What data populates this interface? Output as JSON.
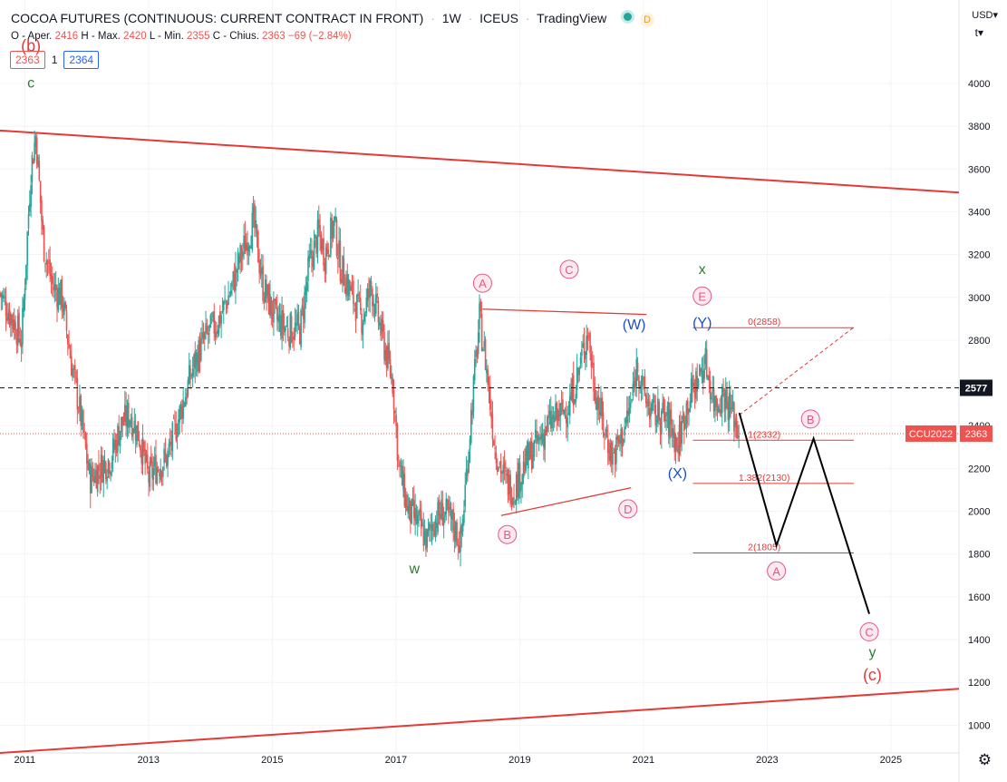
{
  "header": {
    "symbol": "COCOA FUTURES (CONTINUOUS: CURRENT CONTRACT IN FRONT)",
    "interval": "1W",
    "exchange": "ICEUS",
    "source": "TradingView",
    "badge": "D"
  },
  "ohlc": {
    "o_label": "O - Aper.",
    "o": "2416",
    "h_label": "H - Max.",
    "h": "2420",
    "l_label": "L - Min.",
    "l": "2355",
    "c_label": "C - Chius.",
    "c": "2363",
    "change": "−69 (−2.84%)"
  },
  "toolbar": {
    "bid": "2363",
    "mid": "1",
    "ask": "2364"
  },
  "axis": {
    "currency": "USD▾",
    "scale_mode": "t▾"
  },
  "colors": {
    "up": "#26a69a",
    "down": "#ef5350",
    "trend": "#e53935",
    "label_pink": "#e05a82",
    "label_green": "#2e7d32",
    "label_blue": "#1e4fc2"
  },
  "chart_data": {
    "type": "candlestick",
    "interval": "1W",
    "xlim": [
      2010.6,
      2026.1
    ],
    "ylim": [
      870,
      4390
    ],
    "x_ticks": [
      "2011",
      "2013",
      "2015",
      "2017",
      "2019",
      "2021",
      "2023",
      "2025"
    ],
    "y_ticks": [
      1000,
      1200,
      1400,
      1600,
      1800,
      2000,
      2200,
      2400,
      2600,
      2800,
      3000,
      3200,
      3400,
      3600,
      3800,
      4000
    ],
    "grid": true,
    "last_price": 2363,
    "last_price_label": "CCU2022",
    "dashed_level": 2577,
    "price_path": [
      [
        2010.6,
        3020
      ],
      [
        2010.8,
        2900
      ],
      [
        2010.95,
        2800
      ],
      [
        2011.1,
        3600
      ],
      [
        2011.18,
        3760
      ],
      [
        2011.3,
        3250
      ],
      [
        2011.45,
        3050
      ],
      [
        2011.6,
        3000
      ],
      [
        2011.75,
        2700
      ],
      [
        2011.9,
        2450
      ],
      [
        2012.05,
        2150
      ],
      [
        2012.2,
        2200
      ],
      [
        2012.4,
        2250
      ],
      [
        2012.55,
        2400
      ],
      [
        2012.7,
        2450
      ],
      [
        2012.85,
        2350
      ],
      [
        2013.0,
        2150
      ],
      [
        2013.1,
        2200
      ],
      [
        2013.3,
        2250
      ],
      [
        2013.55,
        2500
      ],
      [
        2013.75,
        2700
      ],
      [
        2013.9,
        2800
      ],
      [
        2014.15,
        2900
      ],
      [
        2014.35,
        3050
      ],
      [
        2014.5,
        3200
      ],
      [
        2014.7,
        3350
      ],
      [
        2014.85,
        3050
      ],
      [
        2015.05,
        2900
      ],
      [
        2015.25,
        2850
      ],
      [
        2015.45,
        2850
      ],
      [
        2015.6,
        3150
      ],
      [
        2015.75,
        3300
      ],
      [
        2015.85,
        3200
      ],
      [
        2016.0,
        3350
      ],
      [
        2016.1,
        3150
      ],
      [
        2016.3,
        3000
      ],
      [
        2016.45,
        2900
      ],
      [
        2016.6,
        3050
      ],
      [
        2016.75,
        2850
      ],
      [
        2016.95,
        2600
      ],
      [
        2017.05,
        2200
      ],
      [
        2017.2,
        2000
      ],
      [
        2017.35,
        1950
      ],
      [
        2017.5,
        1860
      ],
      [
        2017.6,
        1950
      ],
      [
        2017.75,
        2000
      ],
      [
        2017.9,
        1950
      ],
      [
        2018.05,
        1850
      ],
      [
        2018.2,
        2400
      ],
      [
        2018.35,
        2900
      ],
      [
        2018.45,
        2700
      ],
      [
        2018.6,
        2300
      ],
      [
        2018.75,
        2150
      ],
      [
        2018.9,
        2100
      ],
      [
        2019.05,
        2200
      ],
      [
        2019.25,
        2300
      ],
      [
        2019.45,
        2400
      ],
      [
        2019.65,
        2450
      ],
      [
        2019.8,
        2500
      ],
      [
        2019.95,
        2650
      ],
      [
        2020.1,
        2850
      ],
      [
        2020.2,
        2600
      ],
      [
        2020.35,
        2400
      ],
      [
        2020.5,
        2250
      ],
      [
        2020.65,
        2350
      ],
      [
        2020.8,
        2500
      ],
      [
        2020.9,
        2700
      ],
      [
        2021.0,
        2550
      ],
      [
        2021.15,
        2450
      ],
      [
        2021.3,
        2450
      ],
      [
        2021.45,
        2400
      ],
      [
        2021.55,
        2300
      ],
      [
        2021.7,
        2500
      ],
      [
        2021.85,
        2600
      ],
      [
        2022.0,
        2700
      ],
      [
        2022.15,
        2500
      ],
      [
        2022.3,
        2550
      ],
      [
        2022.45,
        2450
      ],
      [
        2022.55,
        2363
      ]
    ],
    "trendlines": [
      {
        "name": "upper channel",
        "from": [
          2010.6,
          3780
        ],
        "to": [
          2026.1,
          3490
        ]
      },
      {
        "name": "lower channel",
        "from": [
          2010.6,
          870
        ],
        "to": [
          2026.1,
          1170
        ]
      },
      {
        "name": "A-C line",
        "from": [
          2018.4,
          2945
        ],
        "to": [
          2021.05,
          2920
        ]
      },
      {
        "name": "B-D line",
        "from": [
          2018.7,
          1980
        ],
        "to": [
          2020.8,
          2110
        ]
      }
    ],
    "projection": [
      [
        2022.55,
        2460
      ],
      [
        2023.15,
        1840
      ],
      [
        2023.75,
        2340
      ],
      [
        2024.65,
        1520
      ]
    ],
    "projection_dashed": [
      [
        2022.55,
        2450
      ],
      [
        2024.4,
        2860
      ]
    ],
    "fib_levels": [
      {
        "label": "0(2858)",
        "value": 2858,
        "x0": 2021.8,
        "x1": 2024.4
      },
      {
        "label": "1(2332)",
        "value": 2332,
        "x0": 2021.8,
        "x1": 2024.4
      },
      {
        "label": "1.382(2130)",
        "value": 2130,
        "x0": 2021.8,
        "x1": 2024.4
      },
      {
        "label": "2(1805)",
        "value": 1805,
        "x0": 2021.8,
        "x1": 2024.4
      }
    ],
    "wave_labels": [
      {
        "text": "(b)",
        "x": 2011.1,
        "y": 4150,
        "style": "red-plain"
      },
      {
        "text": "c",
        "x": 2011.1,
        "y": 3980,
        "style": "green"
      },
      {
        "text": "w",
        "x": 2017.3,
        "y": 1710,
        "style": "green"
      },
      {
        "text": "A",
        "x": 2018.4,
        "y": 3045,
        "style": "pink-circle"
      },
      {
        "text": "B",
        "x": 2018.8,
        "y": 1870,
        "style": "pink-circle"
      },
      {
        "text": "C",
        "x": 2019.8,
        "y": 3110,
        "style": "pink-circle"
      },
      {
        "text": "D",
        "x": 2020.75,
        "y": 1990,
        "style": "pink-circle"
      },
      {
        "text": "(W)",
        "x": 2020.85,
        "y": 2850,
        "style": "blue"
      },
      {
        "text": "(X)",
        "x": 2021.55,
        "y": 2155,
        "style": "blue"
      },
      {
        "text": "x",
        "x": 2021.95,
        "y": 3110,
        "style": "green"
      },
      {
        "text": "E",
        "x": 2021.95,
        "y": 2985,
        "style": "pink-circle"
      },
      {
        "text": "(Y)",
        "x": 2021.95,
        "y": 2860,
        "style": "blue"
      },
      {
        "text": "B",
        "x": 2023.7,
        "y": 2410,
        "style": "pink-circle"
      },
      {
        "text": "A",
        "x": 2023.15,
        "y": 1700,
        "style": "pink-circle"
      },
      {
        "text": "C",
        "x": 2024.65,
        "y": 1415,
        "style": "pink-circle"
      },
      {
        "text": "y",
        "x": 2024.7,
        "y": 1320,
        "style": "green"
      },
      {
        "text": "(c)",
        "x": 2024.7,
        "y": 1210,
        "style": "red-plain"
      }
    ]
  }
}
